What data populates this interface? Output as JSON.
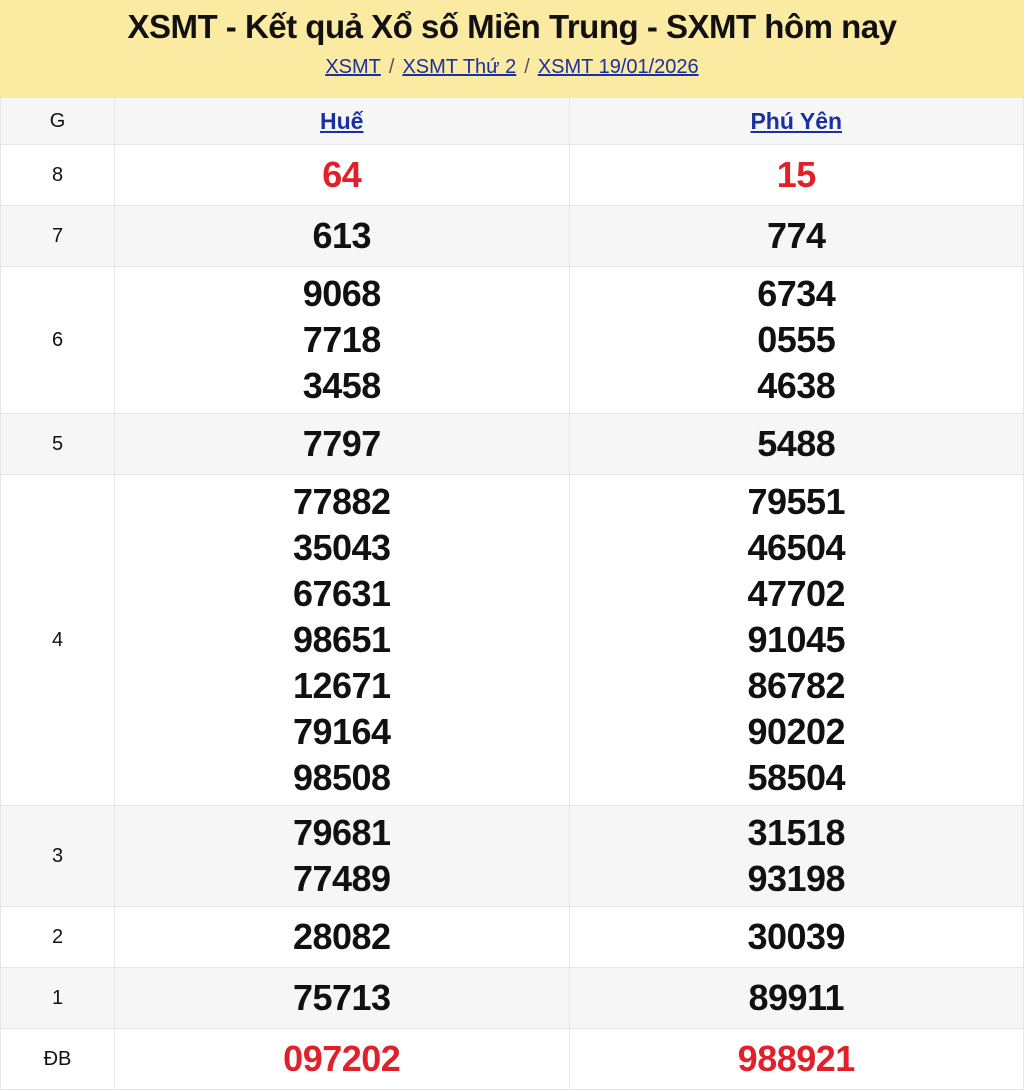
{
  "header": {
    "title": "XSMT - Kết quả Xổ số Miền Trung - SXMT hôm nay",
    "breadcrumb": [
      "XSMT",
      "XSMT Thứ 2",
      "XSMT 19/01/2026"
    ],
    "separator": "/"
  },
  "table": {
    "prize_header": "G",
    "provinces": [
      "Huế",
      "Phú Yên"
    ],
    "highlight_color": "#e0212b",
    "rows": [
      {
        "prize": "8",
        "red": true,
        "values": [
          [
            "64"
          ],
          [
            "15"
          ]
        ]
      },
      {
        "prize": "7",
        "values": [
          [
            "613"
          ],
          [
            "774"
          ]
        ]
      },
      {
        "prize": "6",
        "values": [
          [
            "9068",
            "7718",
            "3458"
          ],
          [
            "6734",
            "0555",
            "4638"
          ]
        ]
      },
      {
        "prize": "5",
        "values": [
          [
            "7797"
          ],
          [
            "5488"
          ]
        ]
      },
      {
        "prize": "4",
        "values": [
          [
            "77882",
            "35043",
            "67631",
            "98651",
            "12671",
            "79164",
            "98508"
          ],
          [
            "79551",
            "46504",
            "47702",
            "91045",
            "86782",
            "90202",
            "58504"
          ]
        ]
      },
      {
        "prize": "3",
        "values": [
          [
            "79681",
            "77489"
          ],
          [
            "31518",
            "93198"
          ]
        ]
      },
      {
        "prize": "2",
        "values": [
          [
            "28082"
          ],
          [
            "30039"
          ]
        ]
      },
      {
        "prize": "1",
        "values": [
          [
            "75713"
          ],
          [
            "89911"
          ]
        ]
      },
      {
        "prize": "ĐB",
        "red": true,
        "values": [
          [
            "097202"
          ],
          [
            "988921"
          ]
        ]
      }
    ]
  }
}
